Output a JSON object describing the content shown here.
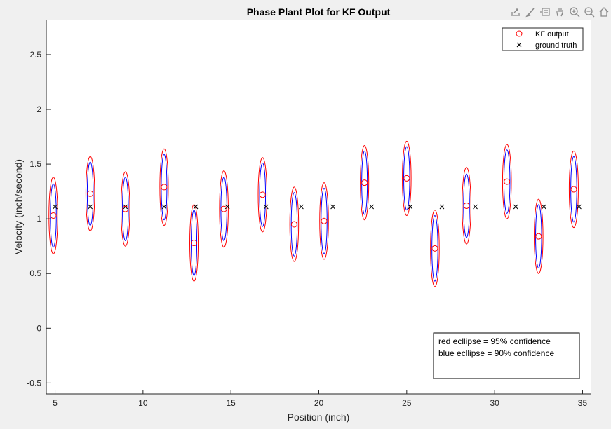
{
  "toolbar": {
    "icons": [
      "export-icon",
      "brush-icon",
      "data-tips-icon",
      "pan-icon",
      "zoom-in-icon",
      "zoom-out-icon",
      "home-icon"
    ]
  },
  "colors": {
    "kf_output": "#ff0000",
    "ground_truth": "#000000",
    "ellipse_95": "#ff0000",
    "ellipse_90": "#0000ff",
    "figure_bg": "#f0f0f0",
    "axes_bg": "#ffffff"
  },
  "chart_data": {
    "type": "scatter",
    "title": "Phase Plant Plot for KF Output",
    "xlabel": "Position (inch)",
    "ylabel": "Velocity (inch/second)",
    "xlim": [
      4.5,
      35.5
    ],
    "ylim": [
      -0.6,
      2.82
    ],
    "xticks": [
      5,
      10,
      15,
      20,
      25,
      30,
      35
    ],
    "yticks": [
      -0.5,
      0,
      0.5,
      1,
      1.5,
      2,
      2.5
    ],
    "xtick_labels": [
      "5",
      "10",
      "15",
      "20",
      "25",
      "30",
      "35"
    ],
    "ytick_labels": [
      "-0.5",
      "0",
      "0.5",
      "1",
      "1.5",
      "2",
      "2.5"
    ],
    "grid": false,
    "legend": {
      "placement": "top-right",
      "entries": [
        "KF output",
        "ground truth"
      ]
    },
    "series": [
      {
        "name": "KF output",
        "marker": "circle",
        "x": [
          4.9,
          7.0,
          9.0,
          11.2,
          12.9,
          14.6,
          16.8,
          18.6,
          20.3,
          22.6,
          25.0,
          26.6,
          28.4,
          30.7,
          32.5,
          34.5
        ],
        "y": [
          1.03,
          1.23,
          1.09,
          1.29,
          0.78,
          1.09,
          1.22,
          0.95,
          0.98,
          1.33,
          1.37,
          0.73,
          1.12,
          1.34,
          0.84,
          1.27
        ]
      },
      {
        "name": "ground truth",
        "marker": "x",
        "x": [
          5.0,
          7.0,
          9.0,
          11.2,
          13.0,
          14.8,
          17.0,
          19.0,
          20.8,
          23.0,
          25.2,
          27.0,
          28.9,
          31.2,
          32.8,
          34.8
        ],
        "y": [
          1.11,
          1.11,
          1.11,
          1.11,
          1.11,
          1.11,
          1.11,
          1.11,
          1.11,
          1.11,
          1.11,
          1.11,
          1.11,
          1.11,
          1.11,
          1.11
        ]
      }
    ],
    "ellipses_95": {
      "semi_x": [
        0.25,
        0.25,
        0.25,
        0.24,
        0.24,
        0.25,
        0.25,
        0.25,
        0.25,
        0.24,
        0.25,
        0.25,
        0.25,
        0.25,
        0.25,
        0.26
      ],
      "semi_y": [
        0.35,
        0.34,
        0.34,
        0.35,
        0.35,
        0.35,
        0.34,
        0.34,
        0.35,
        0.34,
        0.34,
        0.35,
        0.35,
        0.34,
        0.34,
        0.35
      ]
    },
    "ellipses_90": {
      "semi_x": [
        0.17,
        0.17,
        0.17,
        0.16,
        0.16,
        0.17,
        0.17,
        0.17,
        0.17,
        0.16,
        0.17,
        0.17,
        0.17,
        0.17,
        0.17,
        0.17
      ],
      "semi_y": [
        0.29,
        0.29,
        0.29,
        0.3,
        0.3,
        0.29,
        0.29,
        0.29,
        0.3,
        0.29,
        0.29,
        0.3,
        0.29,
        0.29,
        0.29,
        0.3
      ]
    },
    "annotation": {
      "lines": [
        "red ecllipse = 95% confidence",
        "blue ecllipse = 90% confidence"
      ],
      "placement": "bottom-right"
    }
  }
}
